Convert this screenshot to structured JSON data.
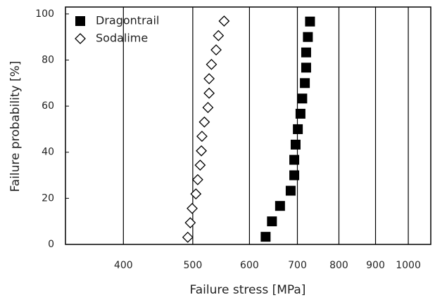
{
  "chart_data": {
    "type": "scatter",
    "xlabel": "Failure stress [MPa]",
    "ylabel": "Failure probability [%]",
    "xscale": "log",
    "xlim": [
      332,
      1075
    ],
    "ylim": [
      0,
      103
    ],
    "xticks": [
      400,
      500,
      600,
      700,
      800,
      900,
      1000
    ],
    "yticks": [
      0,
      20,
      40,
      60,
      80,
      100
    ],
    "grid": "x",
    "legend": "upper left",
    "series": [
      {
        "name": "Dragontrail",
        "color": "#000000",
        "marker": "square",
        "x": [
          632,
          645,
          662,
          685,
          693,
          693,
          696,
          701,
          707,
          711,
          717,
          720,
          720,
          724,
          729
        ],
        "values": [
          3.3,
          10,
          16.7,
          23.3,
          30,
          36.7,
          43.3,
          50,
          56.7,
          63.3,
          70,
          76.7,
          83.3,
          90,
          96.7
        ]
      },
      {
        "name": "Sodalime",
        "color": "#000000",
        "marker": "diamond",
        "x": [
          492,
          496,
          499,
          505,
          508,
          512,
          514,
          515,
          519,
          525,
          527,
          527,
          531,
          539,
          543,
          553
        ],
        "values": [
          3.1,
          9.4,
          15.6,
          21.9,
          28.1,
          34.4,
          40.6,
          46.9,
          53.1,
          59.4,
          65.6,
          71.9,
          78.1,
          84.4,
          90.6,
          96.9
        ]
      }
    ]
  }
}
